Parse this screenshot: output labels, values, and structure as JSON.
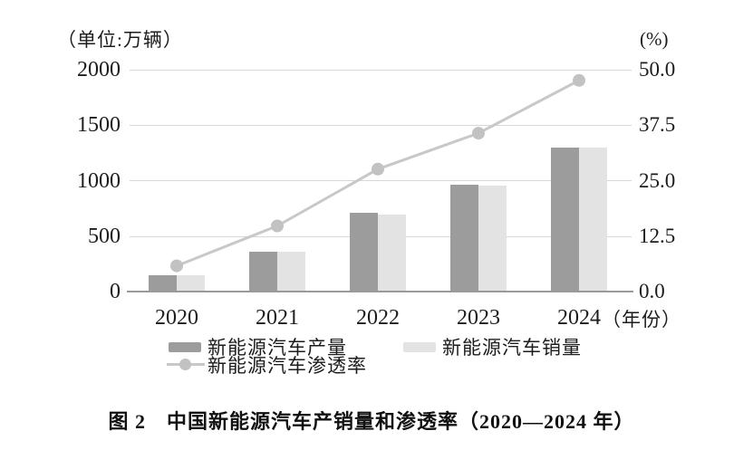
{
  "figure": {
    "caption": "图 2　中国新能源汽车产销量和渗透率（2020—2024 年）"
  },
  "chart_data": {
    "type": "bar+line",
    "title": "中国新能源汽车产销量和渗透率（2020—2024 年）",
    "categories": [
      "2020",
      "2021",
      "2022",
      "2023",
      "2024"
    ],
    "series": [
      {
        "name": "新能源汽车产量",
        "type": "bar",
        "axis": "left",
        "color": "#9c9c9c",
        "values": [
          136.6,
          354.5,
          705.8,
          958.7,
          1288.8
        ]
      },
      {
        "name": "新能源汽车销量",
        "type": "bar",
        "axis": "left",
        "color": "#e3e3e3",
        "values": [
          136.7,
          352.1,
          688.7,
          949.5,
          1286.6
        ]
      },
      {
        "name": "新能源汽车渗透率",
        "type": "line",
        "axis": "right",
        "color": "#c8c8c8",
        "dot_color": "#c2c2c2",
        "values": [
          5.8,
          14.8,
          27.6,
          35.7,
          47.6
        ]
      }
    ],
    "left_axis": {
      "unit": "（单位:万辆）",
      "range": [
        0,
        2000
      ],
      "ticks": [
        "2000",
        "1500",
        "1000",
        "500",
        "0"
      ]
    },
    "right_axis": {
      "unit": "(%)",
      "range": [
        0,
        50
      ],
      "ticks": [
        "50.0",
        "37.5",
        "25.0",
        "12.5",
        "0.0"
      ]
    },
    "x_axis": {
      "unit": "（年份）"
    },
    "grid": true,
    "legend_position": "bottom"
  }
}
